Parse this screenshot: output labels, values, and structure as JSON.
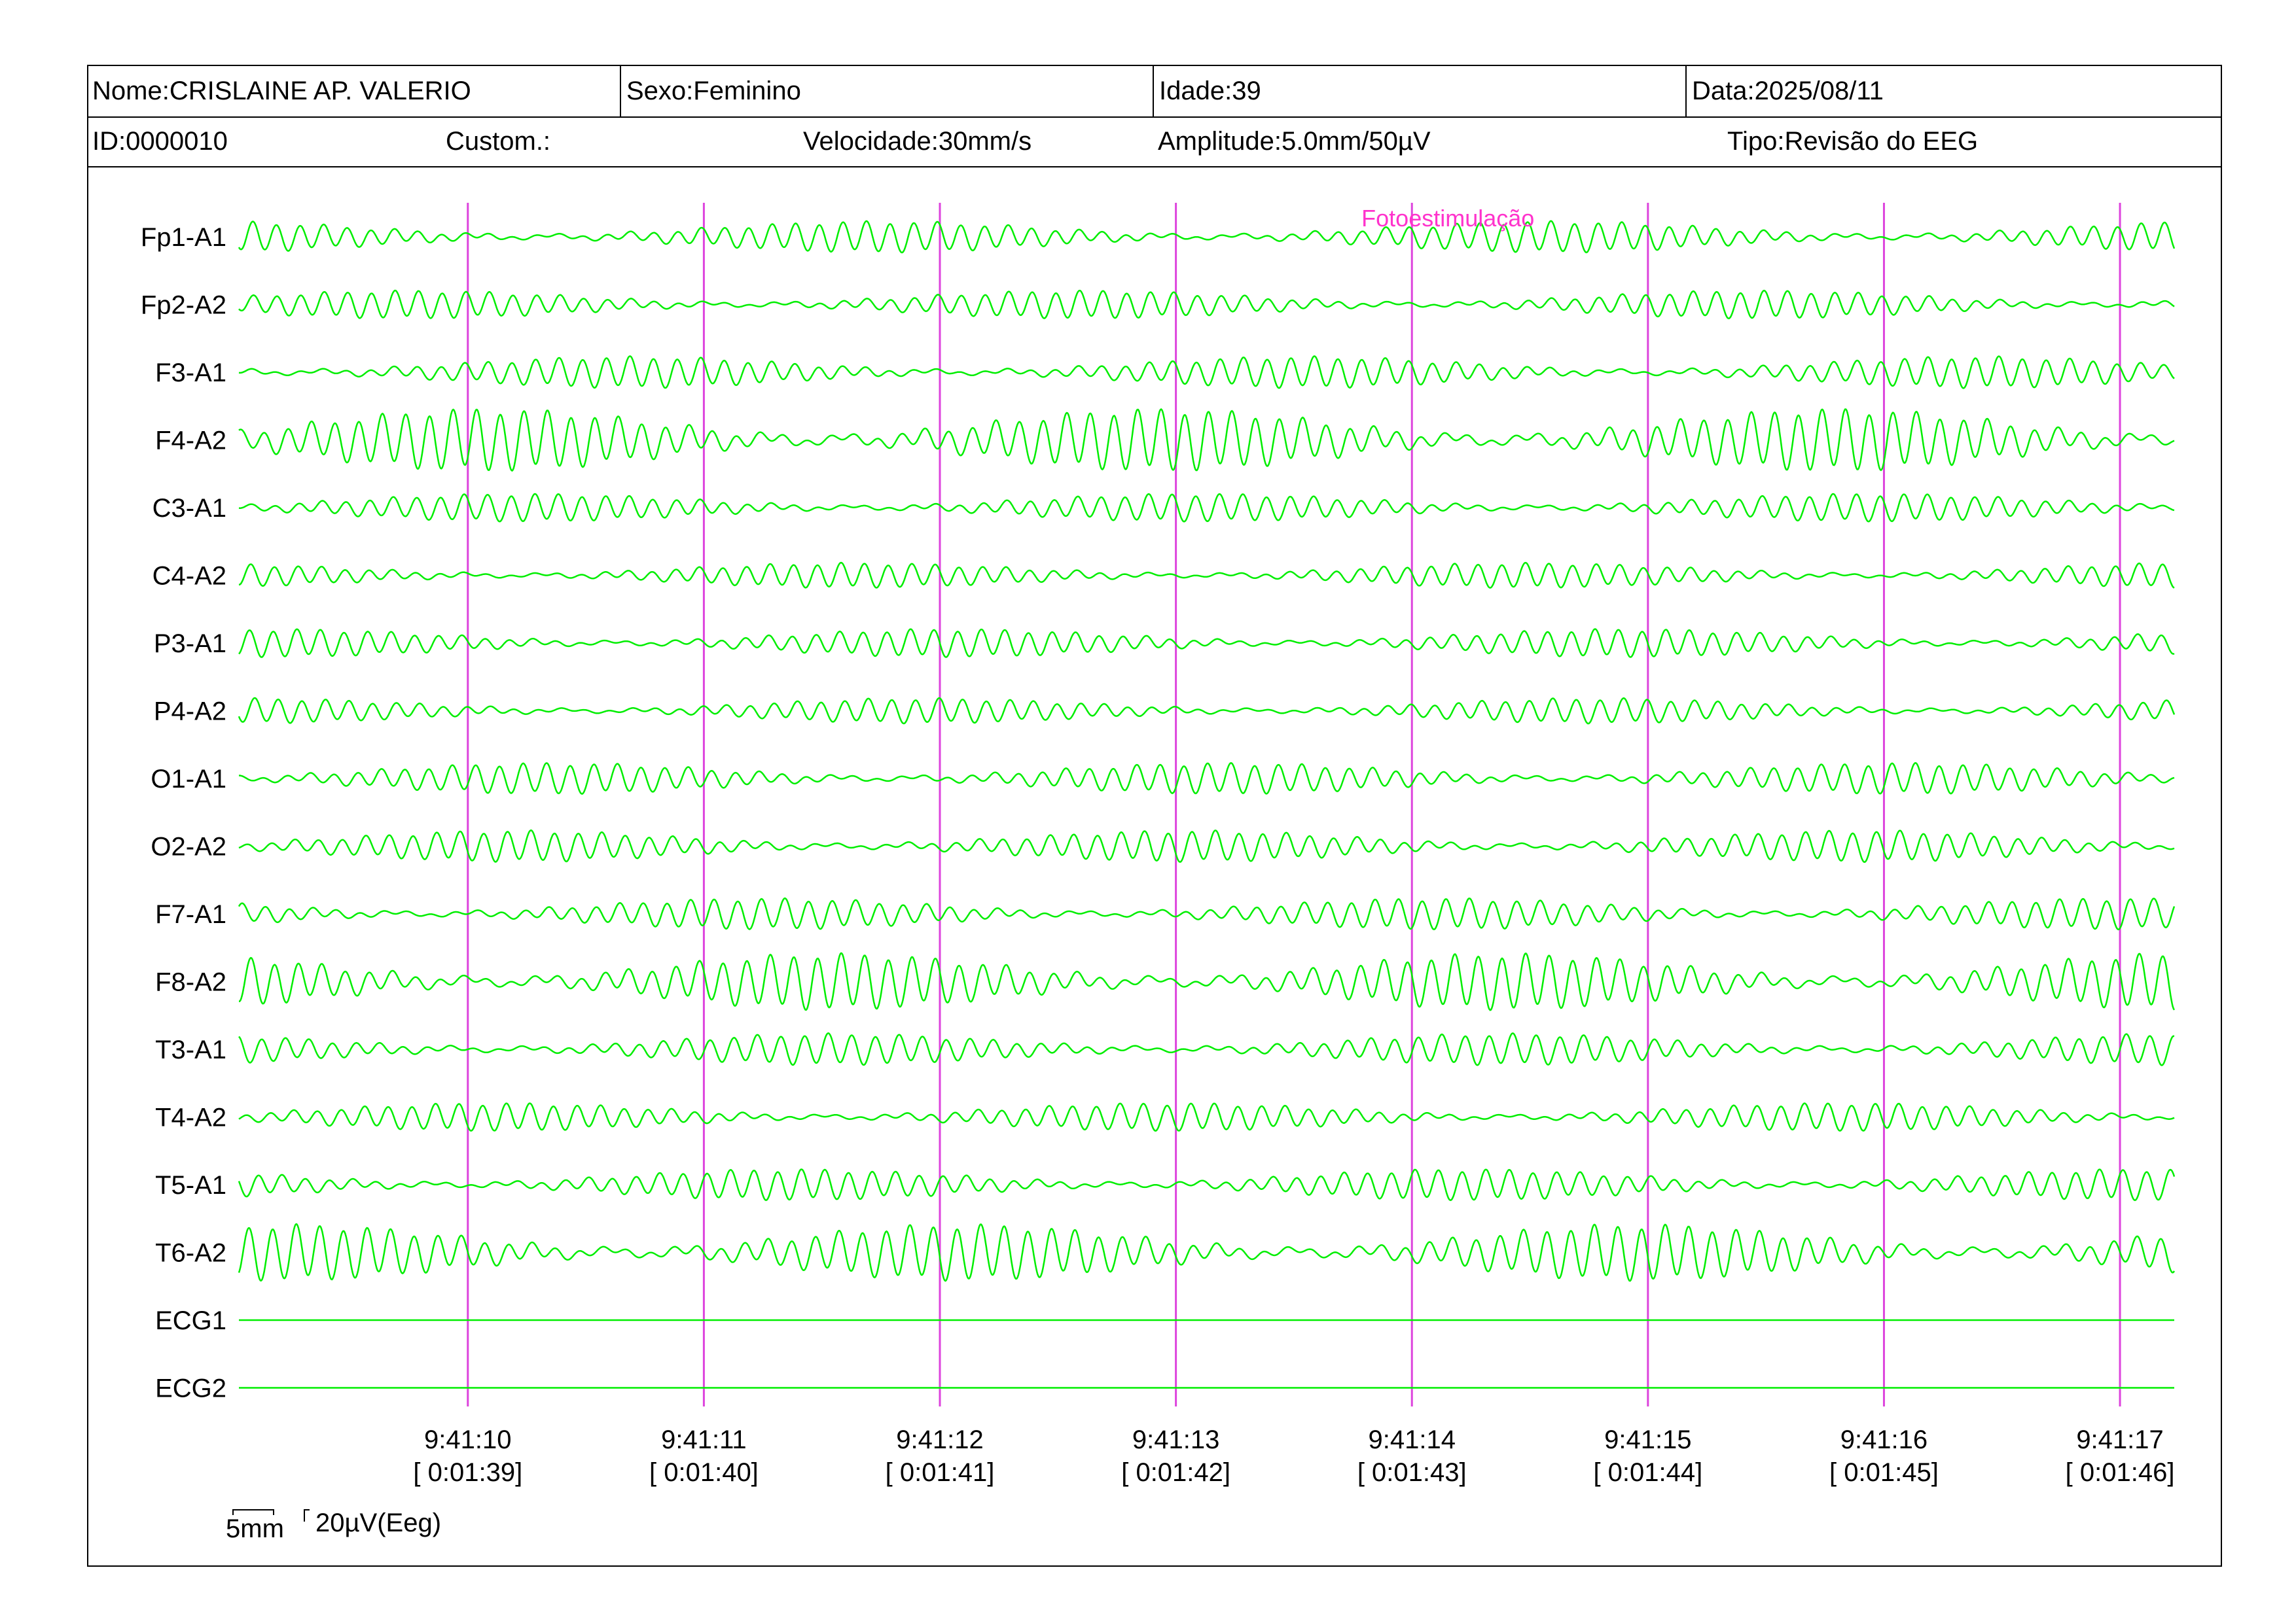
{
  "header": {
    "row1": [
      {
        "label": "Nome:",
        "value": "CRISLAINE AP. VALERIO"
      },
      {
        "label": "Sexo:",
        "value": "Feminino"
      },
      {
        "label": "Idade:",
        "value": "39"
      },
      {
        "label": "Data:",
        "value": "2025/08/11"
      }
    ],
    "row2": [
      {
        "label": "ID:",
        "value": "0000010"
      },
      {
        "label": "Custom.:",
        "value": ""
      },
      {
        "label": "Velocidade:",
        "value": "30mm/s"
      },
      {
        "label": "Amplitude:",
        "value": "5.0mm/50µV"
      },
      {
        "label": "Tipo:",
        "value": "Revisão do EEG"
      }
    ]
  },
  "colors": {
    "trace": "#00ee00",
    "marker": "#dd44dd",
    "annotation": "#ff33cc",
    "border": "#000000"
  },
  "chart_data": {
    "type": "line",
    "channels": [
      {
        "name": "Fp1-A1",
        "amplitude": 0.5,
        "freq": 10
      },
      {
        "name": "Fp2-A2",
        "amplitude": 0.45,
        "freq": 10
      },
      {
        "name": "F3-A1",
        "amplitude": 0.5,
        "freq": 10
      },
      {
        "name": "F4-A2",
        "amplitude": 1.0,
        "freq": 10
      },
      {
        "name": "C3-A1",
        "amplitude": 0.45,
        "freq": 10
      },
      {
        "name": "C4-A2",
        "amplitude": 0.4,
        "freq": 10
      },
      {
        "name": "P3-A1",
        "amplitude": 0.45,
        "freq": 10
      },
      {
        "name": "P4-A2",
        "amplitude": 0.4,
        "freq": 10
      },
      {
        "name": "O1-A1",
        "amplitude": 0.5,
        "freq": 10
      },
      {
        "name": "O2-A2",
        "amplitude": 0.5,
        "freq": 10
      },
      {
        "name": "F7-A1",
        "amplitude": 0.5,
        "freq": 10
      },
      {
        "name": "F8-A2",
        "amplitude": 0.9,
        "freq": 10
      },
      {
        "name": "T3-A1",
        "amplitude": 0.5,
        "freq": 10
      },
      {
        "name": "T4-A2",
        "amplitude": 0.45,
        "freq": 10
      },
      {
        "name": "T5-A1",
        "amplitude": 0.5,
        "freq": 10
      },
      {
        "name": "T6-A2",
        "amplitude": 0.9,
        "freq": 10
      },
      {
        "name": "ECG1",
        "amplitude": 0,
        "freq": 0
      },
      {
        "name": "ECG2",
        "amplitude": 0,
        "freq": 0
      }
    ],
    "x_range_seconds": [
      0,
      8.2
    ],
    "time_markers": [
      {
        "t": 0.97,
        "clock": "9:41:10",
        "elapsed": "[ 0:01:39]"
      },
      {
        "t": 1.97,
        "clock": "9:41:11",
        "elapsed": "[ 0:01:40]"
      },
      {
        "t": 2.97,
        "clock": "9:41:12",
        "elapsed": "[ 0:01:41]"
      },
      {
        "t": 3.97,
        "clock": "9:41:13",
        "elapsed": "[ 0:01:42]"
      },
      {
        "t": 4.97,
        "clock": "9:41:14",
        "elapsed": "[ 0:01:43]"
      },
      {
        "t": 5.97,
        "clock": "9:41:15",
        "elapsed": "[ 0:01:44]"
      },
      {
        "t": 6.97,
        "clock": "9:41:16",
        "elapsed": "[ 0:01:45]"
      },
      {
        "t": 7.97,
        "clock": "9:41:17",
        "elapsed": "[ 0:01:46]"
      }
    ],
    "annotations": [
      {
        "t": 5.2,
        "text": "Fotoestimulação"
      }
    ],
    "scale": {
      "time": "5mm",
      "amplitude": "20µV(Eeg)"
    }
  }
}
